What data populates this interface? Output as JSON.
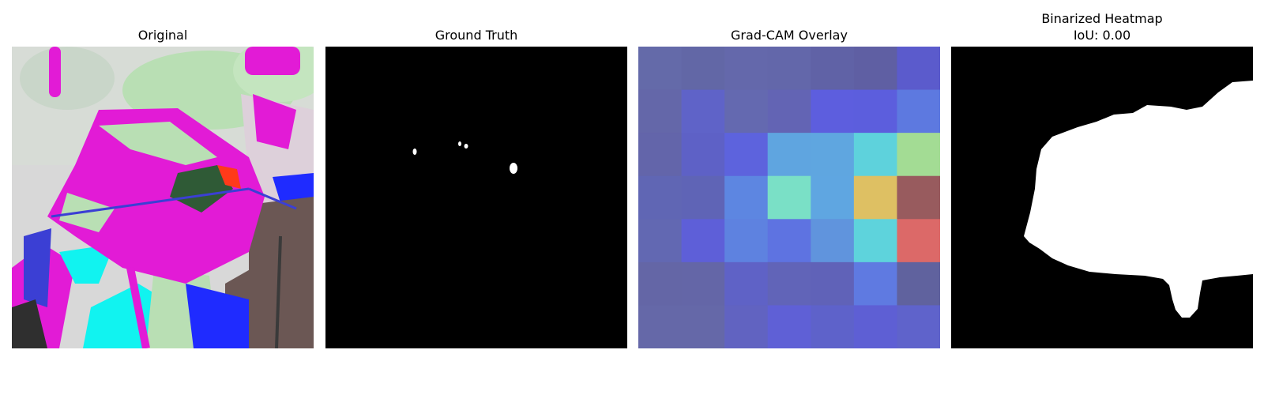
{
  "panels": [
    {
      "title": "Original"
    },
    {
      "title": "Ground Truth"
    },
    {
      "title": "Grad-CAM Overlay"
    },
    {
      "title": "Binarized Heatmap",
      "subtitle": "IoU: 0.00"
    }
  ],
  "colors": {
    "page_background": "#ffffff",
    "mask_background": "#000000",
    "mask_foreground": "#ffffff",
    "leaf_magenta": "#e21bd6",
    "leaf_green": "#b8e0b0",
    "highlight_blue": "#1f2bff",
    "highlight_cyan": "#11f3f0"
  },
  "gradcam": {
    "grid_rows": 7,
    "grid_cols": 7,
    "cells": [
      [
        "#646aa9",
        "#6267a6",
        "#6468ab",
        "#6367aa",
        "#6062a6",
        "#5f5fa3",
        "#5b5bcc"
      ],
      [
        "#6467a9",
        "#5f63c8",
        "#6469b0",
        "#6364b4",
        "#5d5ede",
        "#5c5edd",
        "#5d79e0"
      ],
      [
        "#6365aa",
        "#5e61c6",
        "#5d63dd",
        "#5fa5e0",
        "#5fa6e0",
        "#5ed2dc",
        "#a3dc94"
      ],
      [
        "#6066b4",
        "#5f64b6",
        "#5d86e1",
        "#7ae0c6",
        "#5fa6e1",
        "#dec063",
        "#985b5e"
      ],
      [
        "#6268b2",
        "#5e5fd8",
        "#5e82e0",
        "#5e73e1",
        "#6094dd",
        "#5ed3dc",
        "#dc6968"
      ],
      [
        "#6466a6",
        "#6466a7",
        "#5f62c6",
        "#6164b8",
        "#6062b8",
        "#5f7ae1",
        "#60629e"
      ],
      [
        "#6568a8",
        "#6568a8",
        "#6163c1",
        "#5f60d6",
        "#5e62ca",
        "#5e5fd4",
        "#5f63cb"
      ]
    ]
  }
}
